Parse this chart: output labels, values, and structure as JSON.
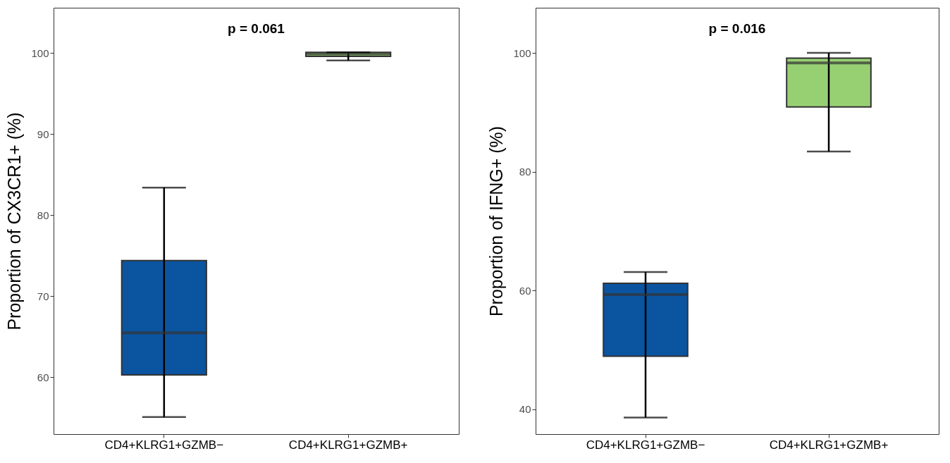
{
  "chart_data": [
    {
      "type": "box",
      "ylabel": "Proportion of CX3CR1+ (%)",
      "categories": [
        "CD4+KLRG1+GZMB−",
        "CD4+KLRG1+GZMB+"
      ],
      "boxes": [
        {
          "low": 55.1,
          "q1": 60.3,
          "median": 65.5,
          "q3": 74.4,
          "high": 83.4
        },
        {
          "low": 99.1,
          "q1": 99.6,
          "median": 99.9,
          "q3": 100.1,
          "high": 100.1
        }
      ],
      "colors": [
        "#0b54a0",
        "#97d073"
      ],
      "ylim": [
        53.0,
        105.6
      ],
      "yticks": [
        60,
        70,
        80,
        90,
        100
      ],
      "grid": false,
      "annotations": [
        "p = 0.061"
      ]
    },
    {
      "type": "box",
      "ylabel": "Proportion of IFNG+ (%)",
      "categories": [
        "CD4+KLRG1+GZMB−",
        "CD4+KLRG1+GZMB+"
      ],
      "boxes": [
        {
          "low": 38.6,
          "q1": 48.9,
          "median": 59.3,
          "q3": 61.2,
          "high": 63.1
        },
        {
          "low": 83.4,
          "q1": 90.9,
          "median": 98.3,
          "q3": 99.1,
          "high": 100.0
        }
      ],
      "colors": [
        "#0b54a0",
        "#97d073"
      ],
      "ylim": [
        35.8,
        107.6
      ],
      "yticks": [
        40,
        60,
        80,
        100
      ],
      "grid": false,
      "annotations": [
        "p = 0.016"
      ]
    }
  ]
}
